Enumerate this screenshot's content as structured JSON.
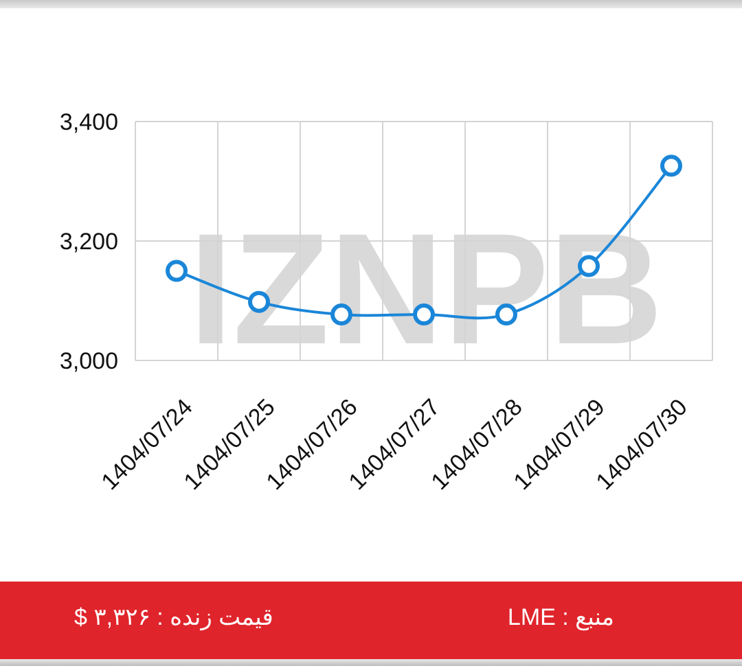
{
  "chart_data": {
    "type": "line",
    "categories": [
      "1404/07/24",
      "1404/07/25",
      "1404/07/26",
      "1404/07/27",
      "1404/07/28",
      "1404/07/29",
      "1404/07/30"
    ],
    "series": [
      {
        "name": "price",
        "color": "#1a86d8",
        "values": [
          3150,
          3098,
          3077,
          3077,
          3077,
          3158,
          3326
        ]
      }
    ],
    "ylim": [
      3000,
      3400
    ],
    "yticks": [
      {
        "value": 3000,
        "label": "3,000"
      },
      {
        "value": 3200,
        "label": "3,200"
      },
      {
        "value": 3400,
        "label": "3,400"
      }
    ],
    "grid": true
  },
  "watermark": "IZNPB",
  "footer": {
    "live_price": "قیمت زنده : ۳,۳۲۶ $",
    "source": "منبع : LME"
  }
}
